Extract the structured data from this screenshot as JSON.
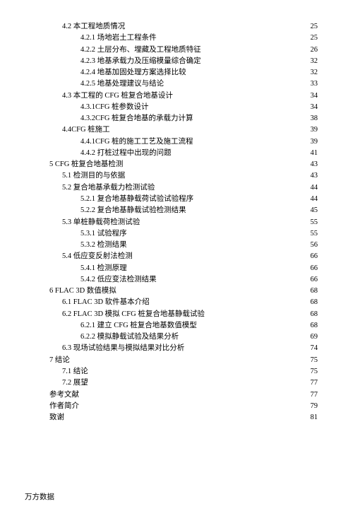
{
  "toc": [
    {
      "level": 2,
      "label": "4.2 本工程地质情况",
      "page": "25"
    },
    {
      "level": 3,
      "label": "4.2.1 场地岩土工程条件",
      "page": "25"
    },
    {
      "level": 3,
      "label": "4.2.2 土层分布、埋藏及工程地质特征",
      "page": "26"
    },
    {
      "level": 3,
      "label": "4.2.3 地基承载力及压缩模量综合确定",
      "page": "32"
    },
    {
      "level": 3,
      "label": "4.2.4 地基加固处理方案选择比较",
      "page": "32"
    },
    {
      "level": 3,
      "label": "4.2.5 地基处理建议与结论",
      "page": "33"
    },
    {
      "level": 2,
      "label": "4.3 本工程的 CFG 桩复合地基设计",
      "page": "34"
    },
    {
      "level": 3,
      "label": "4.3.1CFG 桩参数设计",
      "page": "34"
    },
    {
      "level": 3,
      "label": "4.3.2CFG 桩复合地基的承载力计算",
      "page": "38"
    },
    {
      "level": 2,
      "label": "4.4CFG 桩施工",
      "page": "39"
    },
    {
      "level": 3,
      "label": "4.4.1CFG 桩的施工工艺及施工流程",
      "page": "39"
    },
    {
      "level": 3,
      "label": "4.4.2 打桩过程中出现的问题",
      "page": "41"
    },
    {
      "level": 1,
      "label": "5 CFG 桩复合地基检测",
      "page": "43"
    },
    {
      "level": 2,
      "label": "5.1 检测目的与依据",
      "page": "43"
    },
    {
      "level": 2,
      "label": "5.2 复合地基承载力检测试验",
      "page": "44"
    },
    {
      "level": 3,
      "label": "5.2.1 复合地基静载荷试验试验程序",
      "page": "44"
    },
    {
      "level": 3,
      "label": "5.2.2 复合地基静载试验检测结果",
      "page": "45"
    },
    {
      "level": 2,
      "label": "5.3 单桩静载荷检测试验",
      "page": "55"
    },
    {
      "level": 3,
      "label": "5.3.1 试验程序",
      "page": "55"
    },
    {
      "level": 3,
      "label": "5.3.2 检测结果",
      "page": "56"
    },
    {
      "level": 2,
      "label": "5.4 低应变反射法检测",
      "page": "66"
    },
    {
      "level": 3,
      "label": "5.4.1 检测原理",
      "page": "66"
    },
    {
      "level": 3,
      "label": "5.4.2 低应变法检测结果",
      "page": "66"
    },
    {
      "level": 1,
      "label": "6 FLAC 3D  数值模拟",
      "page": "68"
    },
    {
      "level": 2,
      "label": "6.1 FLAC 3D 软件基本介绍",
      "page": "68"
    },
    {
      "level": 2,
      "label": "6.2 FLAC 3D 模拟 CFG 桩复合地基静载试验",
      "page": "68"
    },
    {
      "level": 3,
      "label": "6.2.1 建立 CFG 桩复合地基数值模型",
      "page": "68"
    },
    {
      "level": 3,
      "label": "6.2.2 模拟静载试验及结果分析",
      "page": "69"
    },
    {
      "level": 2,
      "label": "6.3 现场试验结果与模拟结果对比分析",
      "page": "74"
    },
    {
      "level": 1,
      "label": "7 结论",
      "page": "75"
    },
    {
      "level": 2,
      "label": "7.1 结论",
      "page": "75"
    },
    {
      "level": 2,
      "label": "7.2 展望",
      "page": "77"
    },
    {
      "level": 1,
      "label": "参考文献",
      "page": "77"
    },
    {
      "level": 1,
      "label": "作者简介",
      "page": "79"
    },
    {
      "level": 1,
      "label": "致谢",
      "page": "81"
    }
  ],
  "footer": "万方数据"
}
